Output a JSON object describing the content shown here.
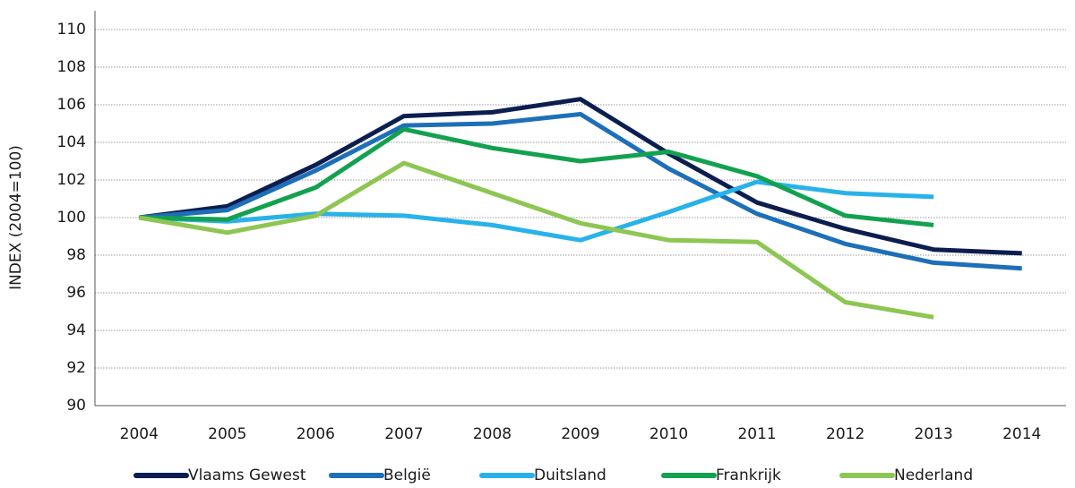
{
  "chart_data": {
    "type": "line",
    "y_label": "INDEX (2004=100)",
    "categories": [
      "2004",
      "2005",
      "2006",
      "2007",
      "2008",
      "2009",
      "2010",
      "2011",
      "2012",
      "2013",
      "2014"
    ],
    "series": [
      {
        "name": "Vlaams Gewest",
        "color": "#0b1e4f",
        "values": [
          100,
          100.6,
          102.8,
          105.4,
          105.6,
          106.3,
          103.4,
          100.8,
          99.4,
          98.3,
          98.1
        ]
      },
      {
        "name": "België",
        "color": "#1d6fb8",
        "values": [
          100,
          100.4,
          102.5,
          104.9,
          105.0,
          105.5,
          102.6,
          100.2,
          98.6,
          97.6,
          97.3
        ]
      },
      {
        "name": "Duitsland",
        "color": "#29b2e9",
        "values": [
          100,
          99.8,
          100.2,
          100.1,
          99.6,
          98.8,
          100.3,
          101.9,
          101.3,
          101.1,
          null
        ]
      },
      {
        "name": "Frankrijk",
        "color": "#13a14f",
        "values": [
          100,
          99.9,
          101.6,
          104.7,
          103.7,
          103.0,
          103.5,
          102.2,
          100.1,
          99.6,
          null
        ]
      },
      {
        "name": "Nederland",
        "color": "#8dc652",
        "values": [
          100,
          99.2,
          100.1,
          102.9,
          101.3,
          99.7,
          98.8,
          98.7,
          95.5,
          94.7,
          null
        ]
      }
    ],
    "ylim": [
      90,
      110
    ],
    "yticks": [
      90,
      92,
      94,
      96,
      98,
      100,
      102,
      104,
      106,
      108,
      110
    ],
    "grid": true,
    "legend": "bottom"
  }
}
